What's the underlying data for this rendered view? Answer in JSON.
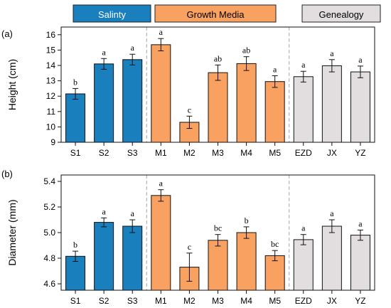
{
  "legend": [
    {
      "label": "Salinty",
      "color": "#1a7fbd",
      "text_color": "#ffffff"
    },
    {
      "label": "Growth Media",
      "color": "#f9a161",
      "text_color": "#000000"
    },
    {
      "label": "Genealogy",
      "color": "#e2dedf",
      "text_color": "#000000"
    }
  ],
  "chart_data": [
    {
      "type": "bar",
      "panel_label": "(a)",
      "ylabel": "Height (cm)",
      "ylim": [
        9,
        16.5
      ],
      "yticks": [
        9,
        10,
        11,
        12,
        13,
        14,
        15,
        16
      ],
      "categories": [
        "S1",
        "S2",
        "S3",
        "M1",
        "M2",
        "M3",
        "M4",
        "M5",
        "EZD",
        "JX",
        "YZ"
      ],
      "groups": [
        "Salinty",
        "Salinty",
        "Salinty",
        "Growth Media",
        "Growth Media",
        "Growth Media",
        "Growth Media",
        "Growth Media",
        "Genealogy",
        "Genealogy",
        "Genealogy"
      ],
      "values": [
        12.15,
        14.1,
        14.38,
        15.35,
        10.3,
        13.53,
        14.12,
        12.95,
        13.27,
        13.98,
        13.58
      ],
      "errors": [
        0.35,
        0.35,
        0.35,
        0.4,
        0.4,
        0.5,
        0.45,
        0.38,
        0.35,
        0.4,
        0.38
      ],
      "significance": [
        "b",
        "a",
        "a",
        "a",
        "c",
        "ab",
        "ab",
        "a",
        "a",
        "a",
        "a"
      ],
      "grid": false
    },
    {
      "type": "bar",
      "panel_label": "(b)",
      "ylabel": "Diameter (mm)",
      "ylim": [
        4.55,
        5.45
      ],
      "yticks": [
        4.6,
        4.8,
        5.0,
        5.2,
        5.4
      ],
      "ytick_labels": [
        "4.6",
        "4.8",
        "5.0",
        "5.2",
        "5.4"
      ],
      "categories": [
        "S1",
        "S2",
        "S3",
        "M1",
        "M2",
        "M3",
        "M4",
        "M5",
        "EZD",
        "JX",
        "YZ"
      ],
      "groups": [
        "Salinty",
        "Salinty",
        "Salinty",
        "Growth Media",
        "Growth Media",
        "Growth Media",
        "Growth Media",
        "Growth Media",
        "Genealogy",
        "Genealogy",
        "Genealogy"
      ],
      "values": [
        4.815,
        5.08,
        5.05,
        5.29,
        4.73,
        4.94,
        5.0,
        4.82,
        4.945,
        5.05,
        4.98
      ],
      "errors": [
        0.04,
        0.035,
        0.05,
        0.045,
        0.11,
        0.045,
        0.045,
        0.04,
        0.04,
        0.05,
        0.04
      ],
      "significance": [
        "b",
        "a",
        "a",
        "a",
        "c",
        "bc",
        "b",
        "bc",
        "a",
        "a",
        "a"
      ],
      "grid": false
    }
  ]
}
